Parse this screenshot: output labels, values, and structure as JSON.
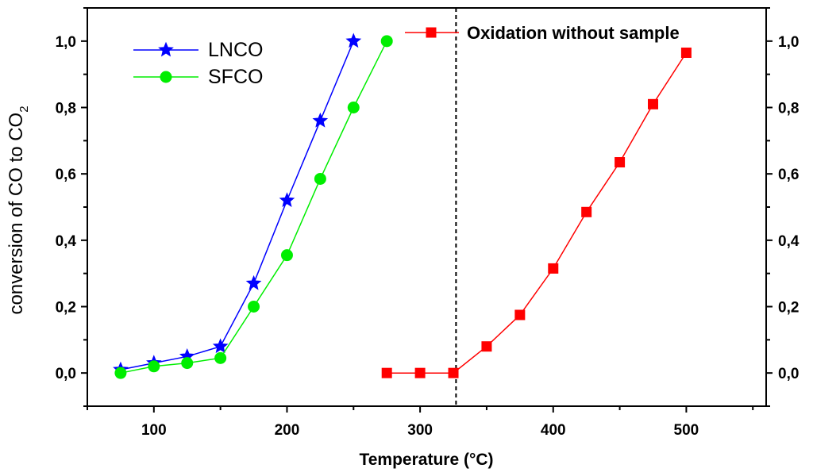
{
  "chart_data": {
    "type": "line",
    "xlabel": "Temperature (°C)",
    "ylabel_main": "conversion of CO to CO",
    "ylabel_sub": "2",
    "xlim": [
      50,
      560
    ],
    "ylim": [
      -0.1,
      1.1
    ],
    "x_ticks": [
      100,
      200,
      300,
      400,
      500
    ],
    "x_tick_labels": [
      "100",
      "200",
      "300",
      "400",
      "500"
    ],
    "y_ticks": [
      0.0,
      0.2,
      0.4,
      0.6,
      0.8,
      1.0
    ],
    "y_tick_labels": [
      "0,0",
      "0,2",
      "0,4",
      "0,6",
      "0,8",
      "1,0"
    ],
    "right_y_tick_labels": [
      "0,0",
      "0,2",
      "0,4",
      "0,6",
      "0,8",
      "1,0"
    ],
    "grid": false,
    "legend_position": "top-left",
    "series": [
      {
        "name": "LNCO",
        "color": "#0000ff",
        "marker": "star",
        "x": [
          75,
          100,
          125,
          150,
          175,
          200,
          225,
          250
        ],
        "y": [
          0.01,
          0.03,
          0.05,
          0.08,
          0.27,
          0.52,
          0.76,
          1.0
        ]
      },
      {
        "name": "SFCO",
        "color": "#00ee00",
        "marker": "circle",
        "x": [
          75,
          100,
          125,
          150,
          175,
          200,
          225,
          250,
          275
        ],
        "y": [
          0.0,
          0.02,
          0.03,
          0.045,
          0.2,
          0.355,
          0.585,
          0.8,
          1.0
        ]
      },
      {
        "name": "Oxidation without sample",
        "color": "#ff0000",
        "marker": "square",
        "x": [
          275,
          300,
          325,
          350,
          375,
          400,
          425,
          450,
          475,
          500
        ],
        "y": [
          0.0,
          0.0,
          0.0,
          0.08,
          0.175,
          0.315,
          0.485,
          0.635,
          0.81,
          0.965
        ]
      }
    ],
    "vertical_line": {
      "x": 327,
      "style": "dashed",
      "color": "#000000"
    }
  }
}
